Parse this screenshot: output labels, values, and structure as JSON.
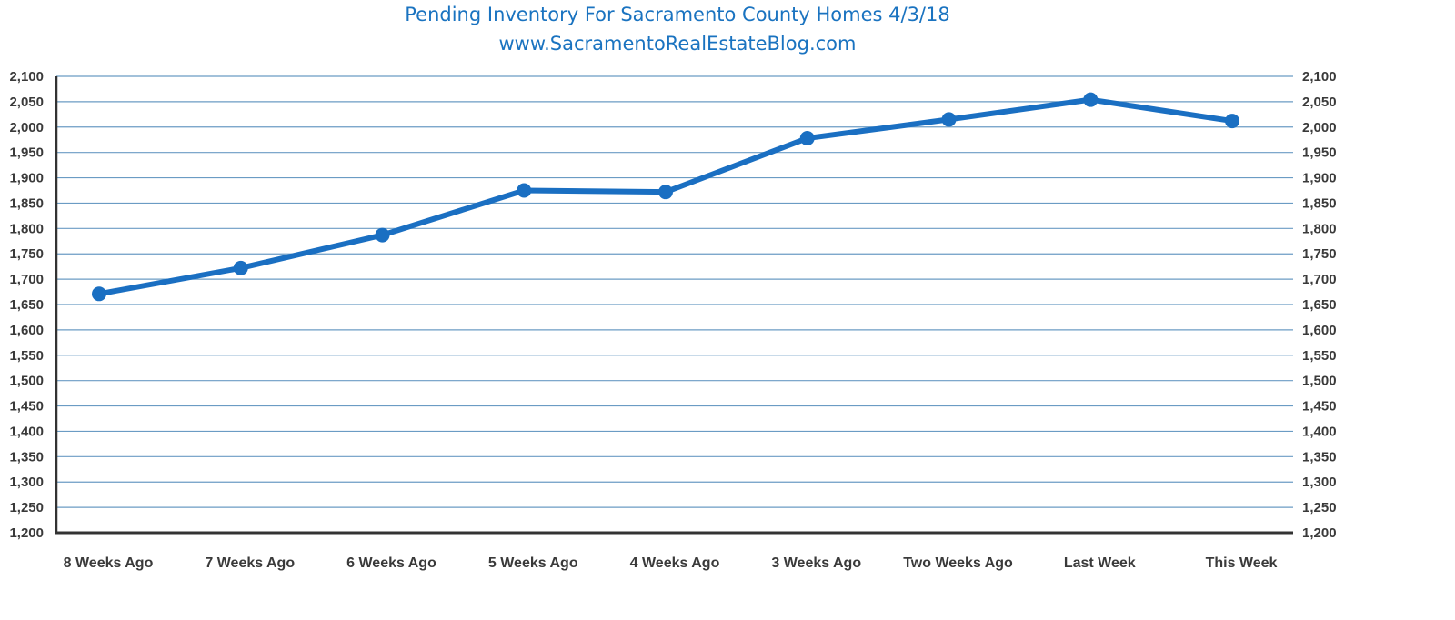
{
  "chart_data": {
    "type": "line",
    "title": "Pending Inventory For Sacramento County Homes 4/3/18",
    "subtitle": "www.SacramentoRealEstateBlog.com",
    "categories": [
      "8 Weeks Ago",
      "7 Weeks Ago",
      "6 Weeks Ago",
      "5 Weeks Ago",
      "4 Weeks Ago",
      "3 Weeks Ago",
      "Two Weeks Ago",
      "Last Week",
      "This Week"
    ],
    "series": [
      {
        "values": [
          1671,
          1722,
          1787,
          1875,
          1872,
          1978,
          2015,
          2054,
          2012
        ]
      }
    ],
    "ylim": [
      1200,
      2100
    ],
    "y_ticks": [
      "1,200",
      "1,250",
      "1,300",
      "1,350",
      "1,400",
      "1,450",
      "1,500",
      "1,550",
      "1,600",
      "1,650",
      "1,700",
      "1,750",
      "1,800",
      "1,850",
      "1,900",
      "1,950",
      "2,000",
      "2,050",
      "2,100"
    ],
    "y_tick_values": [
      1200,
      1250,
      1300,
      1350,
      1400,
      1450,
      1500,
      1550,
      1600,
      1650,
      1700,
      1750,
      1800,
      1850,
      1900,
      1950,
      2000,
      2050,
      2100
    ],
    "dual_y_axis": true,
    "grid": true,
    "legend": "none",
    "colors": {
      "line": "#1a6fc2",
      "grid": "#6b9cc4",
      "axis": "#333333",
      "title": "#1a73c0"
    }
  }
}
